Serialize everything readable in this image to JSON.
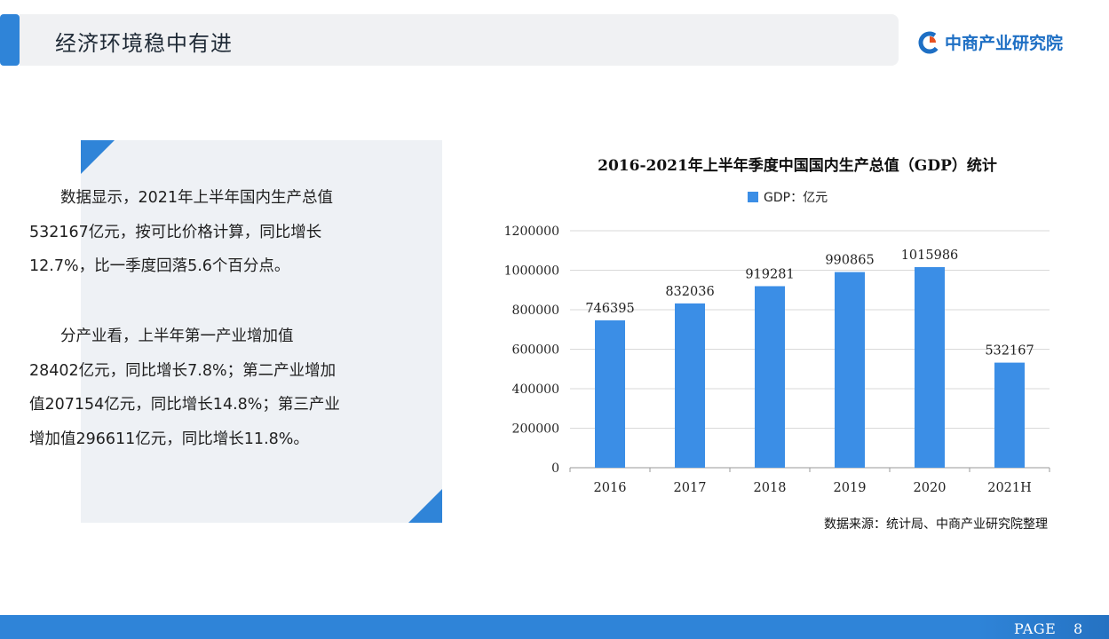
{
  "header": {
    "title": "经济环境稳中有进",
    "logo_text": "中商产业研究院"
  },
  "text_panel": {
    "paragraphs": [
      "数据显示，2021年上半年国内生产总值532167亿元，按可比价格计算，同比增长12.7%，比一季度回落5.6个百分点。",
      "分产业看，上半年第一产业增加值28402亿元，同比增长7.8%；第二产业增加值207154亿元，同比增长14.8%；第三产业增加值296611亿元，同比增长11.8%。"
    ]
  },
  "chart_data": {
    "type": "bar",
    "title": "2016-2021年上半年季度中国国内生产总值（GDP）统计",
    "categories": [
      "2016",
      "2017",
      "2018",
      "2019",
      "2020",
      "2021H"
    ],
    "series": [
      {
        "name": "GDP：亿元",
        "values": [
          746395,
          832036,
          919281,
          990865,
          1015986,
          532167
        ]
      }
    ],
    "ylim": [
      0,
      1200000
    ],
    "yticks": [
      0,
      200000,
      400000,
      600000,
      800000,
      1000000,
      1200000
    ],
    "xlabel": "",
    "ylabel": "",
    "grid": true,
    "legend_position": "top",
    "data_labels": true,
    "bar_color": "#3b8ee6"
  },
  "source": "数据来源：统计局、中商产业研究院整理",
  "footer": {
    "page_label": "PAGE",
    "page_number": "8"
  },
  "colors": {
    "accent": "#2f84d8",
    "bar": "#3b8ee6",
    "panel_bg": "#eef1f5"
  }
}
